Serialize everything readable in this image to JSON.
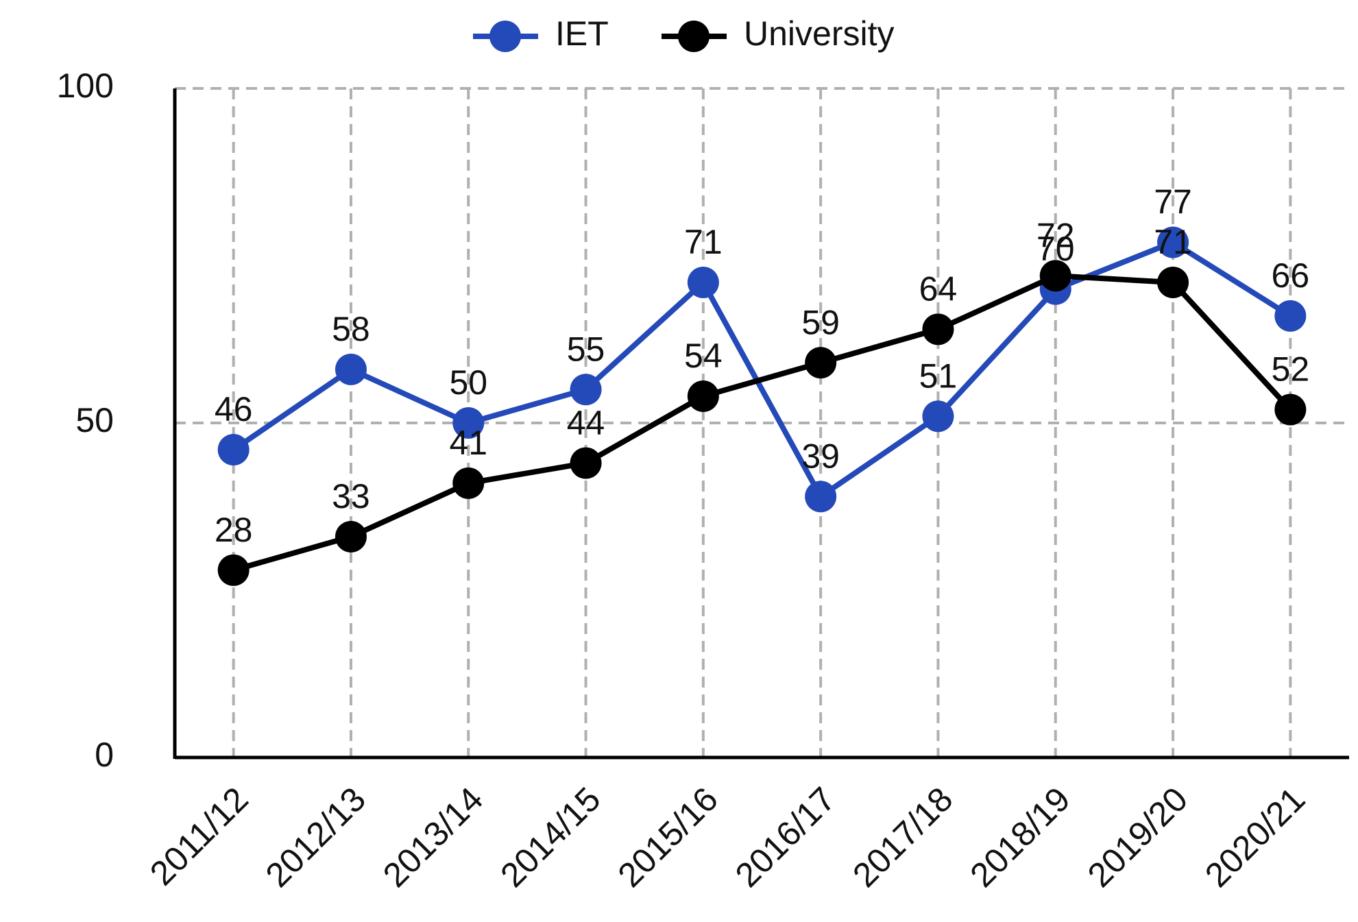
{
  "chart_data": {
    "type": "line",
    "categories": [
      "2011/12",
      "2012/13",
      "2013/14",
      "2014/15",
      "2015/16",
      "2016/17",
      "2017/18",
      "2018/19",
      "2019/20",
      "2020/21"
    ],
    "series": [
      {
        "name": "IET",
        "color": "#2449b8",
        "values": [
          46,
          58,
          50,
          55,
          71,
          39,
          51,
          70,
          77,
          66
        ]
      },
      {
        "name": "University",
        "color": "#000000",
        "values": [
          28,
          33,
          41,
          44,
          54,
          59,
          64,
          72,
          71,
          52
        ]
      }
    ],
    "ylim": [
      0,
      100
    ],
    "yticks": [
      0,
      50,
      100
    ],
    "grid": true,
    "legend": "top"
  }
}
